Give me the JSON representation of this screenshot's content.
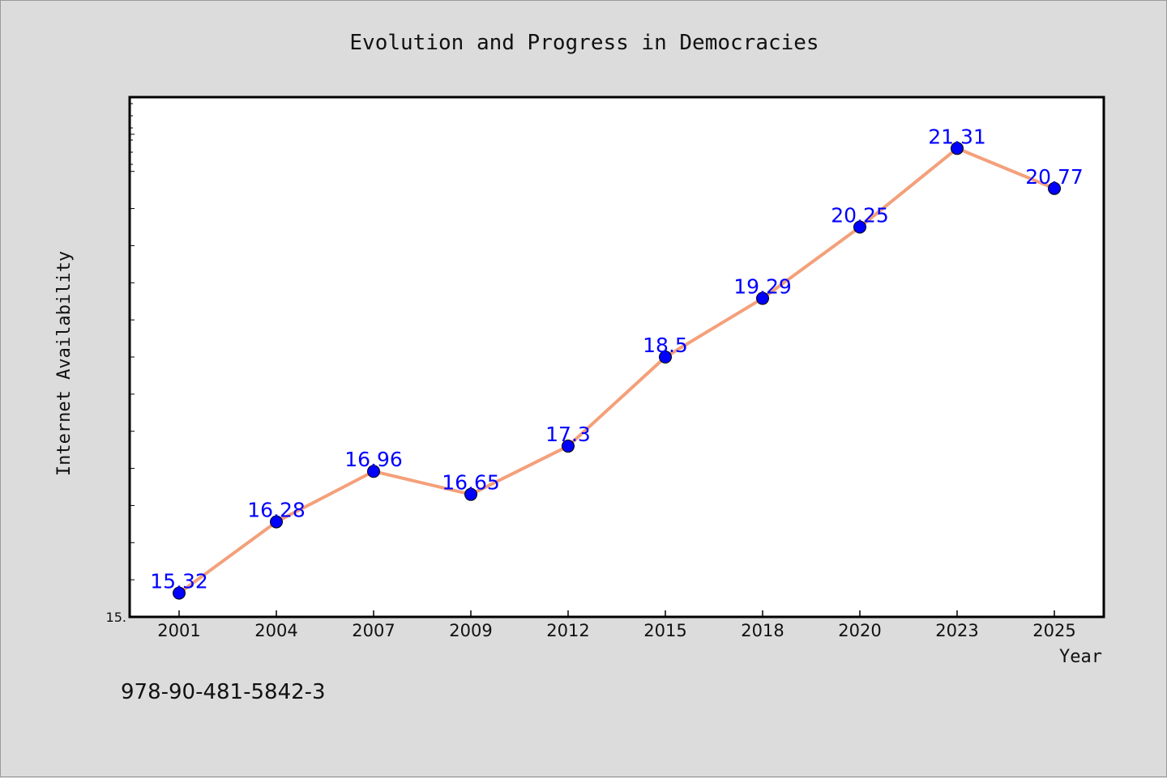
{
  "chart_data": {
    "type": "line",
    "title": "Evolution and Progress in Democracies",
    "xlabel": "Year",
    "ylabel": "Internet Availability",
    "categories": [
      "2001",
      "2004",
      "2007",
      "2009",
      "2012",
      "2015",
      "2018",
      "2020",
      "2023",
      "2025"
    ],
    "series": [
      {
        "values": [
          15.32,
          16.28,
          16.96,
          16.65,
          17.3,
          18.5,
          19.29,
          20.25,
          21.31,
          20.77
        ],
        "labels": [
          "15.32",
          "16.28",
          "16.96",
          "16.65",
          "17.3",
          "18.5",
          "19.29",
          "20.25",
          "21.31",
          "20.77"
        ],
        "line_color": "#f4a07a",
        "marker_color": "#0000ff"
      }
    ],
    "ylim": [
      15.0,
      22.0
    ],
    "y_tick_labels": [
      {
        "value": 15.0,
        "label": "15."
      }
    ],
    "grid": false,
    "legend": "none"
  },
  "footer": {
    "text": "978-90-481-5842-3"
  },
  "colors": {
    "background": "#dcdcdc",
    "plot_background": "#ffffff",
    "frame": "#000000"
  }
}
